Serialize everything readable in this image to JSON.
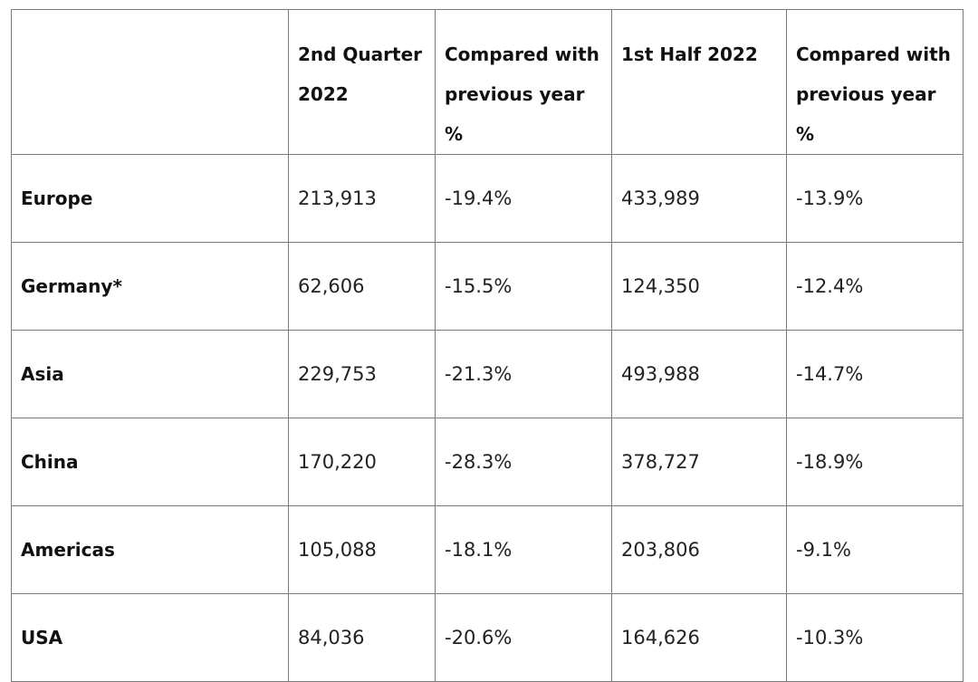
{
  "table": {
    "headers": [
      "",
      "2nd Quarter 2022",
      "Compared with previous year %",
      "1st Half 2022",
      "Compared with previous year %"
    ],
    "rows": [
      {
        "region": "Europe",
        "q2_2022": "213,913",
        "q2_change": "-19.4%",
        "h1_2022": "433,989",
        "h1_change": "-13.9%"
      },
      {
        "region": "Germany*",
        "q2_2022": "62,606",
        "q2_change": "-15.5%",
        "h1_2022": "124,350",
        "h1_change": "-12.4%"
      },
      {
        "region": "Asia",
        "q2_2022": "229,753",
        "q2_change": "-21.3%",
        "h1_2022": "493,988",
        "h1_change": "-14.7%"
      },
      {
        "region": "China",
        "q2_2022": "170,220",
        "q2_change": "-28.3%",
        "h1_2022": "378,727",
        "h1_change": "-18.9%"
      },
      {
        "region": "Americas",
        "q2_2022": "105,088",
        "q2_change": "-18.1%",
        "h1_2022": "203,806",
        "h1_change": "-9.1%"
      },
      {
        "region": "USA",
        "q2_2022": "84,036",
        "q2_change": "-20.6%",
        "h1_2022": "164,626",
        "h1_change": "-10.3%"
      }
    ]
  }
}
